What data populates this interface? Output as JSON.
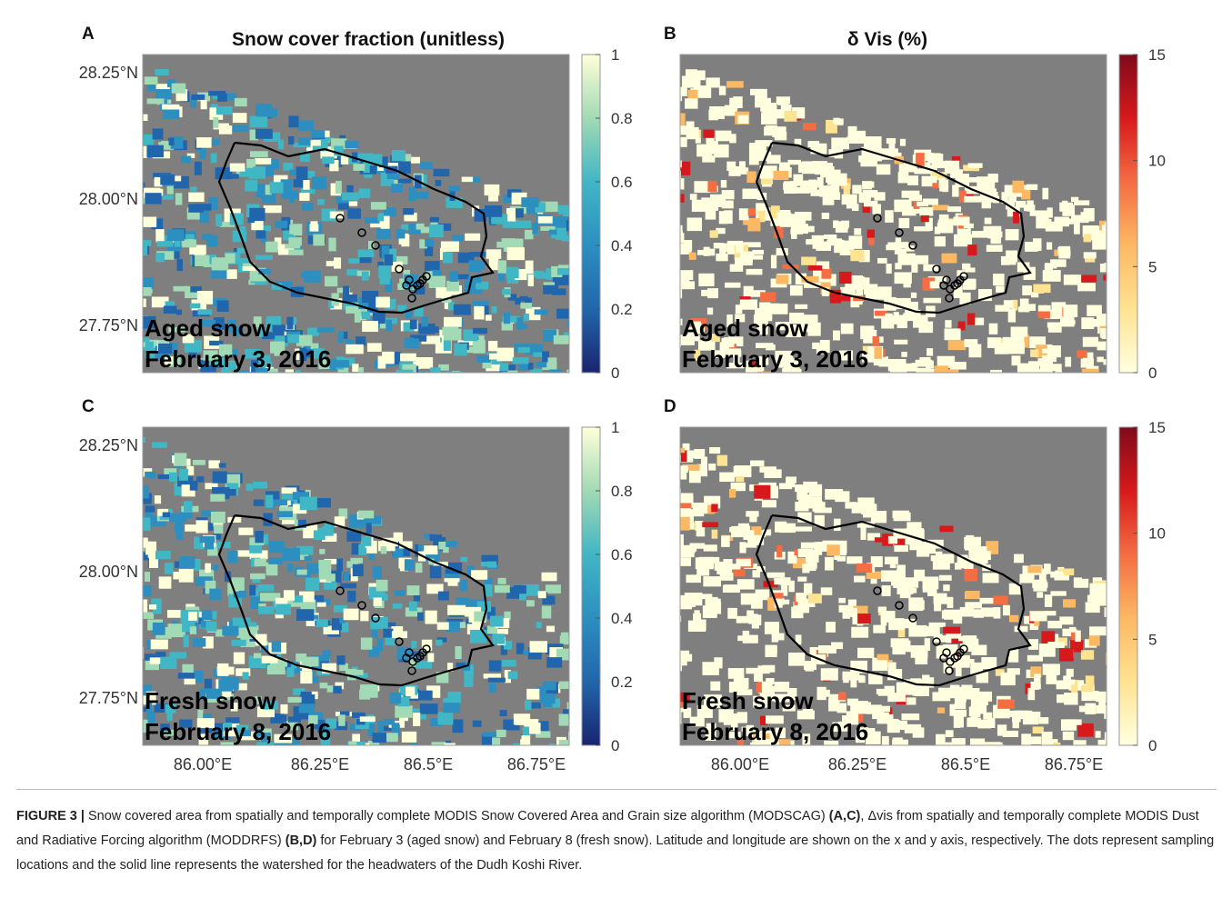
{
  "figure": {
    "columns": [
      {
        "title": "Snow cover fraction (unitless)",
        "colormap": [
          "#1a2470",
          "#2166ac",
          "#2c8fc0",
          "#41b6c4",
          "#a1dab4",
          "#ffffd9"
        ],
        "colorbar": {
          "range": [
            0,
            1
          ],
          "ticks": [
            0,
            0.2,
            0.4,
            0.6,
            0.8,
            1
          ]
        }
      },
      {
        "title": "δ Vis (%)",
        "colormap": [
          "#ffffe0",
          "#fee391",
          "#fdb863",
          "#f46d43",
          "#d7191c",
          "#7f0a1c"
        ],
        "colorbar": {
          "range": [
            0,
            15
          ],
          "ticks": [
            0,
            5,
            10,
            15
          ]
        }
      }
    ],
    "panels": [
      {
        "letter": "A",
        "annotation": [
          "Aged snow",
          "February 3, 2016"
        ]
      },
      {
        "letter": "B",
        "annotation": [
          "Aged snow",
          "February 3, 2016"
        ]
      },
      {
        "letter": "C",
        "annotation": [
          "Fresh snow",
          "February 8, 2016"
        ]
      },
      {
        "letter": "D",
        "annotation": [
          "Fresh snow",
          "February 8, 2016"
        ]
      }
    ],
    "yticks": [
      "28.25°N",
      "28.00°N",
      "27.75°N"
    ],
    "xticks": [
      "86.00°E",
      "86.25°E",
      "86.5°E",
      "86.75°E"
    ],
    "caption": [
      {
        "text": "FIGURE 3 |",
        "bold": true
      },
      {
        "text": " Snow covered area from spatially and temporally complete MODIS Snow Covered Area and Grain size algorithm (MODSCAG) ",
        "bold": false
      },
      {
        "text": "(A,C)",
        "bold": true
      },
      {
        "text": ", Δvis from spatially and temporally complete MODIS Dust and Radiative Forcing algorithm (MODDRFS) ",
        "bold": false
      },
      {
        "text": "(B,D)",
        "bold": true
      },
      {
        "text": " for February 3 (aged snow) and February 8 (fresh snow). Latitude and longitude are shown on the x and y axis, respectively. The dots represent sampling locations and the solid line represents the watershed for the headwaters of the Dudh Koshi River.",
        "bold": false
      }
    ]
  }
}
